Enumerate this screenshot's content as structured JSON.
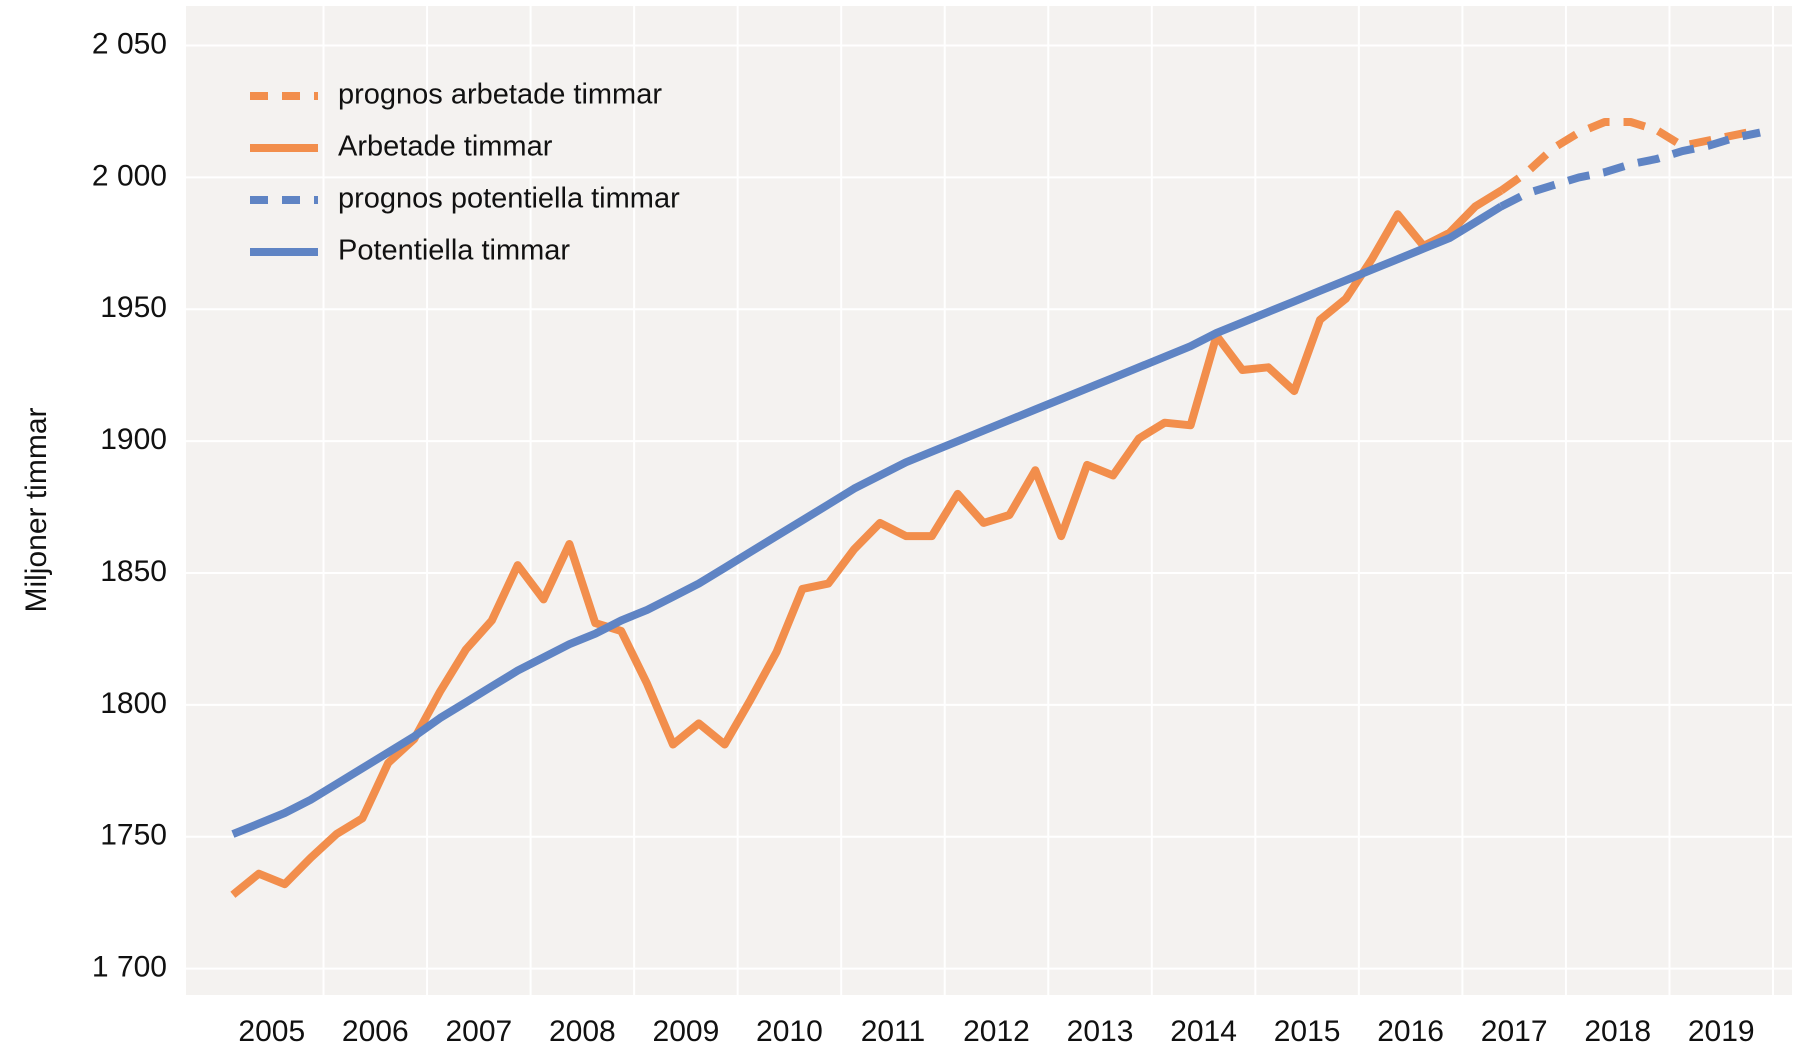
{
  "chart_data": {
    "type": "line",
    "y_label": "Miljoner timmar",
    "categories": [
      null,
      null,
      "2005",
      null,
      null,
      null,
      "2006",
      null,
      null,
      null,
      "2007",
      null,
      null,
      null,
      "2008",
      null,
      null,
      null,
      "2009",
      null,
      null,
      null,
      "2010",
      null,
      null,
      null,
      "2011",
      null,
      null,
      null,
      "2012",
      null,
      null,
      null,
      "2013",
      null,
      null,
      null,
      "2014",
      null,
      null,
      null,
      "2015",
      null,
      null,
      null,
      "2016",
      null,
      null,
      null,
      "2017",
      null,
      null,
      null,
      "2018",
      null,
      null,
      null,
      "2019",
      null
    ],
    "series": [
      {
        "name": "prognos arbetade timmar",
        "color": "#f28e4c",
        "dashed": true,
        "values": [
          null,
          null,
          null,
          null,
          null,
          null,
          null,
          null,
          null,
          null,
          null,
          null,
          null,
          null,
          null,
          null,
          null,
          null,
          null,
          null,
          null,
          null,
          null,
          null,
          null,
          null,
          null,
          null,
          null,
          null,
          null,
          null,
          null,
          null,
          null,
          null,
          null,
          null,
          null,
          null,
          null,
          null,
          null,
          null,
          null,
          null,
          null,
          null,
          null,
          1995,
          2002,
          2011,
          2017,
          2021,
          2021,
          2018,
          2012,
          2014,
          2016,
          2018
        ]
      },
      {
        "name": "Arbetade timmar",
        "color": "#f28e4c",
        "dashed": false,
        "values": [
          1728,
          1736,
          1732,
          1742,
          1751,
          1757,
          1778,
          1787,
          1805,
          1821,
          1832,
          1853,
          1840,
          1861,
          1831,
          1828,
          1808,
          1785,
          1793,
          1785,
          1802,
          1820,
          1844,
          1846,
          1859,
          1869,
          1864,
          1864,
          1880,
          1869,
          1872,
          1889,
          1864,
          1891,
          1887,
          1901,
          1907,
          1906,
          1940,
          1927,
          1928,
          1919,
          1946,
          1954,
          1969,
          1986,
          1974,
          1979,
          1989,
          1995,
          null,
          null,
          null,
          null,
          null,
          null,
          null,
          null,
          null,
          null
        ]
      },
      {
        "name": "prognos potentiella timmar",
        "color": "#5f84c4",
        "dashed": true,
        "values": [
          null,
          null,
          null,
          null,
          null,
          null,
          null,
          null,
          null,
          null,
          null,
          null,
          null,
          null,
          null,
          null,
          null,
          null,
          null,
          null,
          null,
          null,
          null,
          null,
          null,
          null,
          null,
          null,
          null,
          null,
          null,
          null,
          null,
          null,
          null,
          null,
          null,
          null,
          null,
          null,
          null,
          null,
          null,
          null,
          null,
          null,
          null,
          null,
          null,
          1989,
          1994,
          1997,
          2000,
          2002,
          2005,
          2007,
          2010,
          2012,
          2015,
          2017
        ]
      },
      {
        "name": "Potentiella timmar",
        "color": "#5f84c4",
        "dashed": false,
        "values": [
          1751,
          1755,
          1759,
          1764,
          1770,
          1776,
          1782,
          1788,
          1795,
          1801,
          1807,
          1813,
          1818,
          1823,
          1827,
          1832,
          1836,
          1841,
          1846,
          1852,
          1858,
          1864,
          1870,
          1876,
          1882,
          1887,
          1892,
          1896,
          1900,
          1904,
          1908,
          1912,
          1916,
          1920,
          1924,
          1928,
          1932,
          1936,
          1941,
          1945,
          1949,
          1953,
          1957,
          1961,
          1965,
          1969,
          1973,
          1977,
          1983,
          1989,
          null,
          null,
          null,
          null,
          null,
          null,
          null,
          null,
          null,
          null
        ]
      }
    ],
    "ylim": [
      1690,
      2065
    ],
    "yticks": [
      {
        "value": 1700,
        "label": "1 700"
      },
      1750,
      1800,
      1850,
      1900,
      1950,
      {
        "value": 2000,
        "label": "2 000"
      },
      {
        "value": 2050,
        "label": "2 050"
      }
    ],
    "grid": true,
    "legend": "upper-left"
  }
}
